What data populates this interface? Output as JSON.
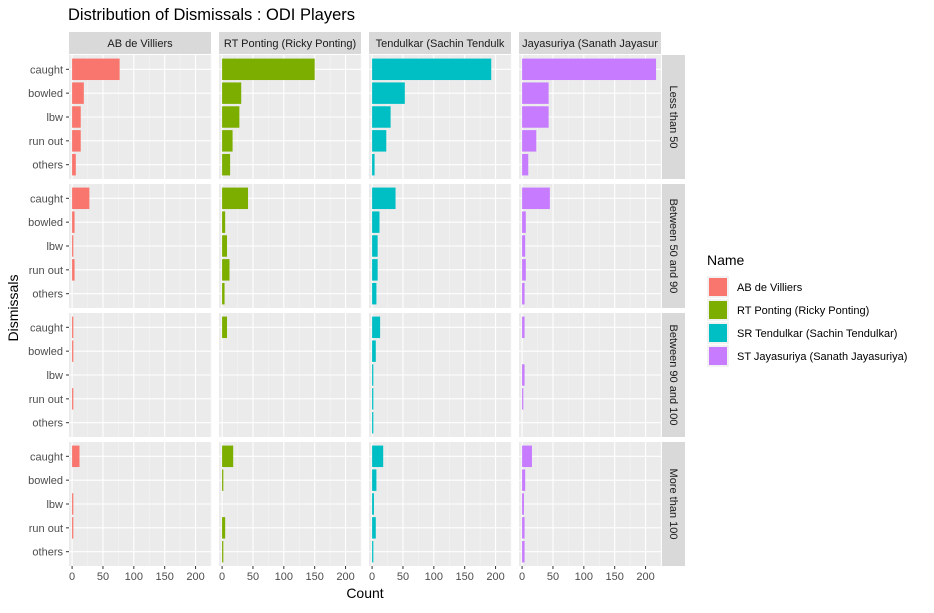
{
  "chart_data": {
    "type": "bar",
    "orientation": "horizontal",
    "title": "Distribution of Dismissals :  ODI Players",
    "xlabel": "Count",
    "ylabel": "Dismissals",
    "xlim": [
      -5,
      225
    ],
    "x_ticks": [
      0,
      50,
      100,
      150,
      200
    ],
    "categories": [
      "caught",
      "bowled",
      "lbw",
      "run out",
      "others"
    ],
    "col_strips": [
      "AB de Villiers",
      "RT Ponting (Ricky Ponting)",
      "Tendulkar (Sachin Tendulk",
      "Jayasuriya (Sanath Jayasur"
    ],
    "row_strips": [
      "Less than 50",
      "Between 50 and 90",
      "Between 90 and 100",
      "More than 100"
    ],
    "legend": {
      "title": "Name",
      "position": "right",
      "entries": [
        "AB de Villiers",
        "RT Ponting (Ricky Ponting)",
        "SR Tendulkar (Sachin Tendulkar)",
        "ST Jayasuriya (Sanath Jayasuriya)"
      ]
    },
    "colors": [
      "#F8766D",
      "#7CAE00",
      "#00BFC4",
      "#C77CFF"
    ],
    "grid": true,
    "series": [
      {
        "name": "AB de Villiers",
        "values": [
          [
            77,
            19,
            14,
            14,
            6
          ],
          [
            28,
            4,
            2,
            4,
            0
          ],
          [
            2,
            2,
            0,
            2,
            0
          ],
          [
            12,
            0,
            2,
            2,
            0
          ]
        ]
      },
      {
        "name": "RT Ponting (Ricky Ponting)",
        "values": [
          [
            150,
            31,
            28,
            17,
            13
          ],
          [
            42,
            5,
            8,
            12,
            4
          ],
          [
            8,
            0,
            0,
            0,
            0
          ],
          [
            18,
            2,
            0,
            5,
            2
          ]
        ]
      },
      {
        "name": "SR Tendulkar (Sachin Tendulkar)",
        "values": [
          [
            193,
            53,
            30,
            23,
            4
          ],
          [
            38,
            12,
            9,
            9,
            7
          ],
          [
            13,
            6,
            2,
            2,
            2
          ],
          [
            18,
            7,
            3,
            6,
            2
          ]
        ]
      },
      {
        "name": "ST Jayasuriya (Sanath Jayasuriya)",
        "values": [
          [
            217,
            43,
            43,
            23,
            10
          ],
          [
            45,
            6,
            5,
            6,
            4
          ],
          [
            4,
            0,
            4,
            2,
            0
          ],
          [
            16,
            5,
            3,
            4,
            4
          ]
        ]
      }
    ]
  }
}
